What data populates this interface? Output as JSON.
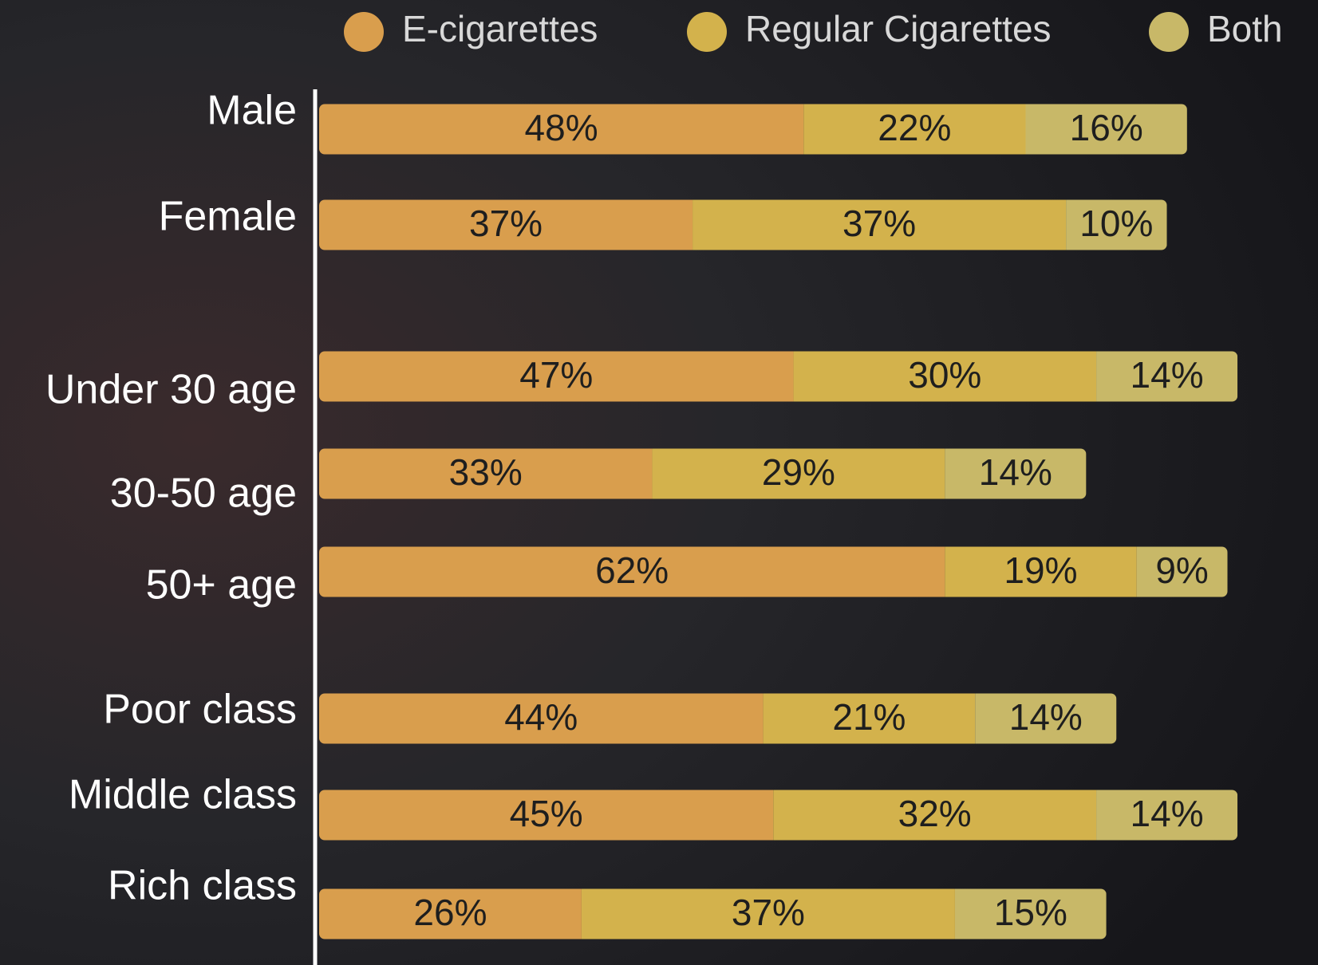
{
  "chart_data": {
    "type": "stacked-bar-horizontal",
    "categories": [
      "Male",
      "Female",
      "Under 30 age",
      "30-50 age",
      "50+ age",
      "Poor class",
      "Middle class",
      "Rich class"
    ],
    "series": [
      {
        "name": "E-cigarettes",
        "color": "#d99e4d",
        "values": [
          48,
          37,
          47,
          33,
          62,
          44,
          45,
          26
        ],
        "value_labels": [
          "48%",
          "37%",
          "47%",
          "33%",
          "62%",
          "44%",
          "45%",
          "26%"
        ]
      },
      {
        "name": "Regular Cigarettes",
        "color": "#d3b24c",
        "values": [
          22,
          37,
          30,
          29,
          19,
          21,
          32,
          37
        ],
        "value_labels": [
          "22%",
          "37%",
          "30%",
          "29%",
          "19%",
          "21%",
          "32%",
          "37%"
        ]
      },
      {
        "name": "Both",
        "color": "#c8b868",
        "values": [
          16,
          10,
          14,
          14,
          9,
          14,
          14,
          15
        ],
        "value_labels": [
          "16%",
          "10%",
          "14%",
          "14%",
          "9%",
          "14%",
          "14%",
          "15%"
        ]
      }
    ],
    "legend": "top"
  }
}
